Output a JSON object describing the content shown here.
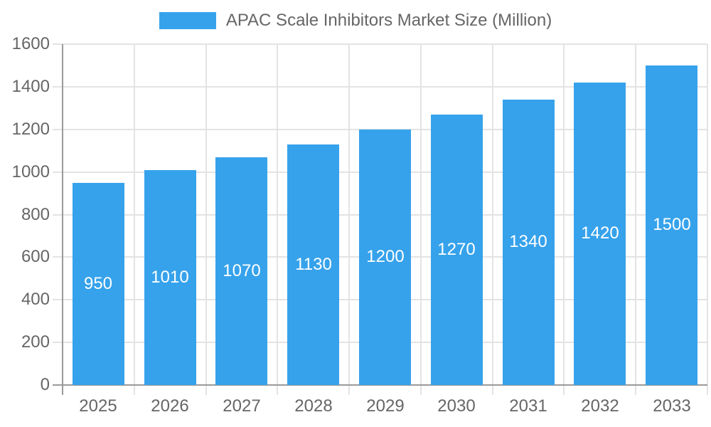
{
  "legend": {
    "label": "APAC Scale Inhibitors Market Size (Million)"
  },
  "colors": {
    "bar": "#36A2EB",
    "grid": "#E3E3E3",
    "axis": "#9A9A9A",
    "text": "#666666",
    "bar_label": "#FFFFFF"
  },
  "chart_data": {
    "type": "bar",
    "title": "APAC Scale Inhibitors Market Size (Million)",
    "categories": [
      "2025",
      "2026",
      "2027",
      "2028",
      "2029",
      "2030",
      "2031",
      "2032",
      "2033"
    ],
    "values": [
      950,
      1010,
      1070,
      1130,
      1200,
      1270,
      1340,
      1420,
      1500
    ],
    "series": [
      {
        "name": "APAC Scale Inhibitors Market Size (Million)",
        "values": [
          950,
          1010,
          1070,
          1130,
          1200,
          1270,
          1340,
          1420,
          1500
        ]
      }
    ],
    "xlabel": "",
    "ylabel": "",
    "ylim": [
      0,
      1600
    ],
    "ytick_step": 200,
    "grid": true,
    "legend_position": "top",
    "bar_label_position": "center"
  }
}
